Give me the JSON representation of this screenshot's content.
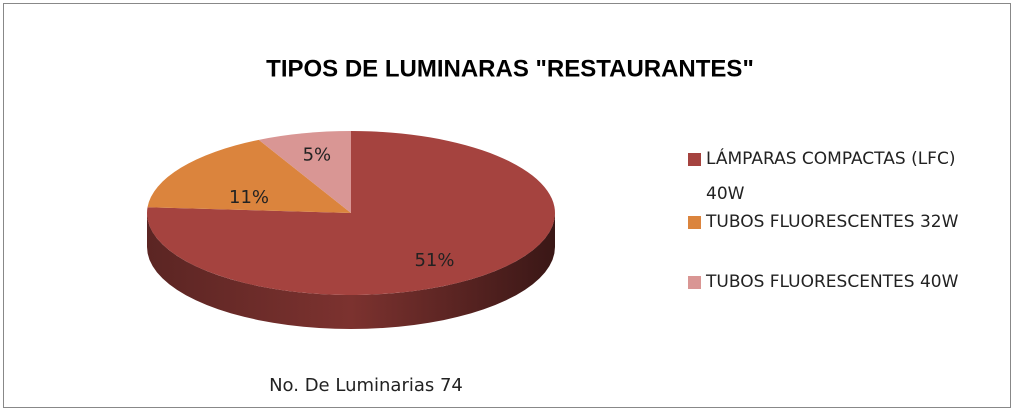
{
  "chart_data": {
    "type": "pie",
    "title": "TIPOS DE LUMINARAS \"RESTAURANTES\"",
    "annotation": "No. De Luminarias 74",
    "categories": [
      "LÁMPARAS COMPACTAS (LFC) 40W",
      "TUBOS FLUORESCENTES 32W",
      "TUBOS FLUORESCENTES 40W"
    ],
    "values": [
      51,
      11,
      5
    ],
    "value_labels": [
      "51%",
      "11%",
      "5%"
    ],
    "colors": [
      "#a5433f",
      "#db843d",
      "#d99694"
    ],
    "legend": "right"
  }
}
